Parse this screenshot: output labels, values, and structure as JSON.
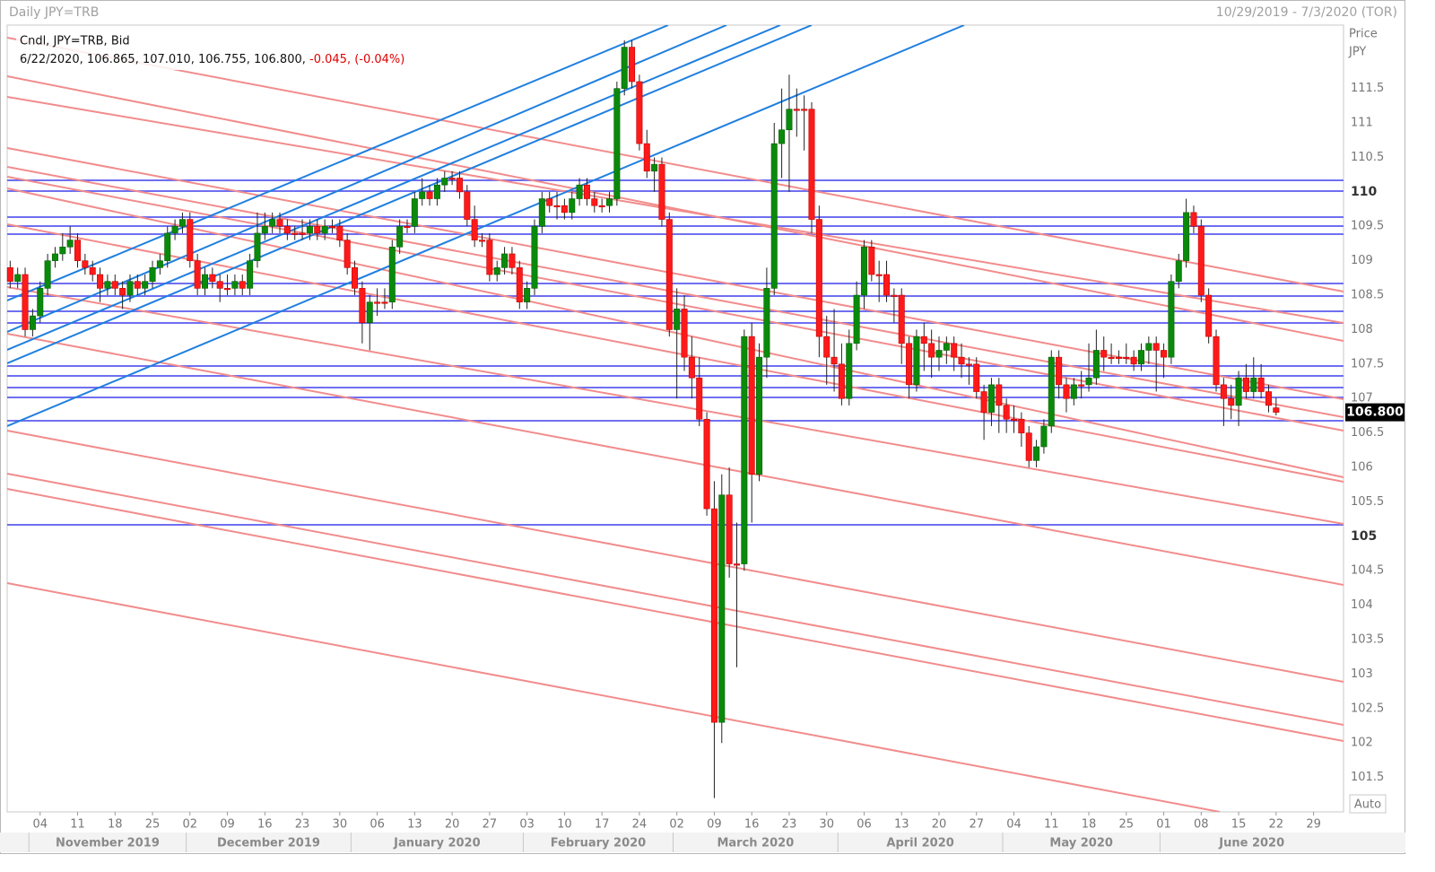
{
  "chart_data": {
    "type": "candlestick",
    "title": "Daily JPY=TRB",
    "subtitle": "10/29/2019 - 7/3/2020 (TOR)",
    "legend_title": "Cndl, JPY=TRB, Bid",
    "legend_values": "6/22/2020, 106.865, 107.010, 106.755, 106.800,",
    "legend_change": "-0.045, (-0.04%)",
    "y_label": "Price",
    "y_unit": "JPY",
    "last_price_label": "106.800",
    "auto_label": "Auto",
    "up_color": "#0a8a0a",
    "down_color": "#ff1a1a",
    "ylim": [
      101,
      112.42
    ],
    "xlim": [
      -0.4,
      178
    ],
    "yticks": [
      101.5,
      102,
      102.5,
      103,
      103.5,
      104,
      104.5,
      105,
      105.5,
      106,
      106.5,
      107,
      107.5,
      108,
      108.5,
      109,
      109.5,
      110,
      110.5,
      111,
      111.5
    ],
    "xticks": [
      {
        "value": 4,
        "label": "04"
      },
      {
        "value": 9,
        "label": "11"
      },
      {
        "value": 14,
        "label": "18"
      },
      {
        "value": 19,
        "label": "25"
      },
      {
        "value": 24,
        "label": "02"
      },
      {
        "value": 29,
        "label": "09"
      },
      {
        "value": 34,
        "label": "16"
      },
      {
        "value": 39,
        "label": "23"
      },
      {
        "value": 44,
        "label": "30"
      },
      {
        "value": 49,
        "label": "06"
      },
      {
        "value": 54,
        "label": "13"
      },
      {
        "value": 59,
        "label": "20"
      },
      {
        "value": 64,
        "label": "27"
      },
      {
        "value": 69,
        "label": "03"
      },
      {
        "value": 74,
        "label": "10"
      },
      {
        "value": 79,
        "label": "17"
      },
      {
        "value": 84,
        "label": "24"
      },
      {
        "value": 89,
        "label": "02"
      },
      {
        "value": 94,
        "label": "09"
      },
      {
        "value": 99,
        "label": "16"
      },
      {
        "value": 104,
        "label": "23"
      },
      {
        "value": 109,
        "label": "30"
      },
      {
        "value": 114,
        "label": "06"
      },
      {
        "value": 119,
        "label": "13"
      },
      {
        "value": 124,
        "label": "20"
      },
      {
        "value": 129,
        "label": "27"
      },
      {
        "value": 134,
        "label": "04"
      },
      {
        "value": 139,
        "label": "11"
      },
      {
        "value": 144,
        "label": "18"
      },
      {
        "value": 149,
        "label": "25"
      },
      {
        "value": 154,
        "label": "01"
      },
      {
        "value": 159,
        "label": "08"
      },
      {
        "value": 164,
        "label": "15"
      },
      {
        "value": 169,
        "label": "22"
      },
      {
        "value": 174,
        "label": "29"
      }
    ],
    "month_ticks": [
      {
        "value": 3,
        "label": "November 2019"
      },
      {
        "value": 24,
        "label": "December 2019"
      },
      {
        "value": 46,
        "label": "January 2020"
      },
      {
        "value": 69,
        "label": "February 2020"
      },
      {
        "value": 89,
        "label": "March 2020"
      },
      {
        "value": 111,
        "label": "April 2020"
      },
      {
        "value": 133,
        "label": "May 2020"
      },
      {
        "value": 154,
        "label": "June 2020"
      }
    ],
    "candles": [
      [
        108.9,
        109.0,
        108.6,
        108.7
      ],
      [
        108.7,
        108.9,
        108.6,
        108.8
      ],
      [
        108.8,
        108.9,
        107.9,
        108.0
      ],
      [
        108.0,
        108.3,
        107.9,
        108.2
      ],
      [
        108.2,
        108.7,
        108.1,
        108.6
      ],
      [
        108.6,
        109.1,
        108.5,
        109.0
      ],
      [
        109.0,
        109.2,
        108.9,
        109.1
      ],
      [
        109.1,
        109.4,
        109.0,
        109.2
      ],
      [
        109.2,
        109.5,
        109.1,
        109.3
      ],
      [
        109.3,
        109.4,
        108.9,
        109.0
      ],
      [
        109.0,
        109.1,
        108.8,
        108.9
      ],
      [
        108.9,
        109.0,
        108.7,
        108.8
      ],
      [
        108.8,
        108.9,
        108.4,
        108.6
      ],
      [
        108.6,
        108.8,
        108.5,
        108.7
      ],
      [
        108.7,
        108.8,
        108.5,
        108.6
      ],
      [
        108.6,
        108.7,
        108.3,
        108.5
      ],
      [
        108.5,
        108.8,
        108.4,
        108.7
      ],
      [
        108.7,
        108.8,
        108.5,
        108.6
      ],
      [
        108.6,
        108.8,
        108.5,
        108.7
      ],
      [
        108.7,
        109.0,
        108.6,
        108.9
      ],
      [
        108.9,
        109.1,
        108.8,
        109.0
      ],
      [
        109.0,
        109.5,
        108.9,
        109.4
      ],
      [
        109.4,
        109.6,
        109.3,
        109.5
      ],
      [
        109.5,
        109.7,
        109.4,
        109.6
      ],
      [
        109.6,
        109.7,
        108.9,
        109.0
      ],
      [
        109.0,
        109.1,
        108.5,
        108.6
      ],
      [
        108.6,
        108.9,
        108.5,
        108.8
      ],
      [
        108.8,
        108.9,
        108.6,
        108.7
      ],
      [
        108.7,
        108.8,
        108.4,
        108.6
      ],
      [
        108.6,
        108.8,
        108.5,
        108.6
      ],
      [
        108.6,
        108.8,
        108.5,
        108.7
      ],
      [
        108.7,
        108.8,
        108.5,
        108.6
      ],
      [
        108.6,
        109.1,
        108.5,
        109.0
      ],
      [
        109.0,
        109.7,
        108.9,
        109.4
      ],
      [
        109.4,
        109.7,
        109.3,
        109.5
      ],
      [
        109.5,
        109.7,
        109.4,
        109.6
      ],
      [
        109.6,
        109.7,
        109.4,
        109.5
      ],
      [
        109.5,
        109.6,
        109.3,
        109.4
      ],
      [
        109.4,
        109.5,
        109.3,
        109.4
      ],
      [
        109.4,
        109.6,
        109.3,
        109.4
      ],
      [
        109.4,
        109.6,
        109.3,
        109.5
      ],
      [
        109.5,
        109.6,
        109.3,
        109.4
      ],
      [
        109.4,
        109.6,
        109.3,
        109.5
      ],
      [
        109.5,
        109.6,
        109.4,
        109.5
      ],
      [
        109.5,
        109.6,
        109.2,
        109.3
      ],
      [
        109.3,
        109.4,
        108.8,
        108.9
      ],
      [
        108.9,
        109.0,
        108.5,
        108.6
      ],
      [
        108.6,
        108.7,
        107.8,
        108.1
      ],
      [
        108.1,
        108.5,
        107.7,
        108.4
      ],
      [
        108.4,
        108.6,
        108.2,
        108.4
      ],
      [
        108.4,
        108.6,
        108.3,
        108.4
      ],
      [
        108.4,
        109.3,
        108.3,
        109.2
      ],
      [
        109.2,
        109.6,
        109.1,
        109.5
      ],
      [
        109.5,
        109.6,
        109.4,
        109.5
      ],
      [
        109.5,
        110.0,
        109.4,
        109.9
      ],
      [
        109.9,
        110.2,
        109.8,
        110.0
      ],
      [
        110.0,
        110.1,
        109.8,
        109.9
      ],
      [
        109.9,
        110.2,
        109.8,
        110.1
      ],
      [
        110.1,
        110.3,
        110.0,
        110.2
      ],
      [
        110.2,
        110.3,
        110.1,
        110.2
      ],
      [
        110.2,
        110.3,
        109.9,
        110.0
      ],
      [
        110.0,
        110.1,
        109.5,
        109.6
      ],
      [
        109.6,
        109.8,
        109.2,
        109.3
      ],
      [
        109.3,
        109.4,
        109.2,
        109.3
      ],
      [
        109.3,
        109.4,
        108.7,
        108.8
      ],
      [
        108.8,
        109.0,
        108.7,
        108.9
      ],
      [
        108.9,
        109.2,
        108.8,
        109.1
      ],
      [
        109.1,
        109.2,
        108.8,
        108.9
      ],
      [
        108.9,
        109.0,
        108.3,
        108.4
      ],
      [
        108.4,
        108.7,
        108.3,
        108.6
      ],
      [
        108.6,
        109.6,
        108.5,
        109.5
      ],
      [
        109.5,
        110.0,
        109.4,
        109.9
      ],
      [
        109.9,
        110.0,
        109.7,
        109.8
      ],
      [
        109.8,
        110.0,
        109.6,
        109.8
      ],
      [
        109.8,
        109.9,
        109.6,
        109.7
      ],
      [
        109.7,
        110.0,
        109.6,
        109.9
      ],
      [
        109.9,
        110.2,
        109.8,
        110.1
      ],
      [
        110.1,
        110.2,
        109.8,
        109.9
      ],
      [
        109.9,
        110.0,
        109.7,
        109.8
      ],
      [
        109.8,
        109.9,
        109.7,
        109.8
      ],
      [
        109.8,
        110.0,
        109.7,
        109.9
      ],
      [
        109.9,
        111.6,
        109.8,
        111.5
      ],
      [
        111.5,
        112.2,
        111.4,
        112.1
      ],
      [
        112.1,
        112.2,
        111.5,
        111.6
      ],
      [
        111.6,
        111.7,
        110.6,
        110.7
      ],
      [
        110.7,
        110.9,
        110.2,
        110.3
      ],
      [
        110.3,
        110.5,
        110.0,
        110.4
      ],
      [
        110.4,
        110.5,
        109.5,
        109.6
      ],
      [
        109.6,
        109.7,
        107.9,
        108.0
      ],
      [
        108.0,
        108.6,
        107.0,
        108.3
      ],
      [
        108.3,
        108.5,
        107.4,
        107.6
      ],
      [
        107.6,
        107.9,
        107.0,
        107.3
      ],
      [
        107.3,
        107.6,
        106.6,
        106.7
      ],
      [
        106.7,
        106.8,
        105.3,
        105.4
      ],
      [
        105.4,
        105.8,
        101.2,
        102.3
      ],
      [
        102.3,
        105.9,
        102.0,
        105.6
      ],
      [
        105.6,
        106.0,
        104.4,
        104.6
      ],
      [
        104.6,
        105.2,
        103.1,
        104.6
      ],
      [
        104.6,
        108.0,
        104.5,
        107.9
      ],
      [
        107.9,
        108.1,
        105.2,
        105.9
      ],
      [
        105.9,
        107.8,
        105.8,
        107.6
      ],
      [
        107.6,
        108.9,
        107.3,
        108.6
      ],
      [
        108.6,
        111.0,
        108.5,
        110.7
      ],
      [
        110.7,
        111.5,
        110.2,
        110.9
      ],
      [
        110.9,
        111.7,
        110.0,
        111.2
      ],
      [
        111.2,
        111.5,
        110.8,
        111.2
      ],
      [
        111.2,
        111.4,
        110.6,
        111.2
      ],
      [
        111.2,
        111.3,
        109.4,
        109.6
      ],
      [
        109.6,
        109.8,
        107.6,
        107.9
      ],
      [
        107.9,
        108.2,
        107.2,
        107.6
      ],
      [
        107.6,
        108.3,
        107.1,
        107.5
      ],
      [
        107.5,
        107.8,
        106.9,
        107.0
      ],
      [
        107.0,
        108.0,
        106.9,
        107.8
      ],
      [
        107.8,
        108.7,
        107.7,
        108.5
      ],
      [
        108.5,
        109.3,
        108.3,
        109.2
      ],
      [
        109.2,
        109.3,
        108.7,
        108.8
      ],
      [
        108.8,
        109.0,
        108.4,
        108.8
      ],
      [
        108.8,
        109.0,
        108.4,
        108.5
      ],
      [
        108.5,
        108.6,
        108.1,
        108.5
      ],
      [
        108.5,
        108.6,
        107.5,
        107.8
      ],
      [
        107.8,
        107.9,
        107.0,
        107.2
      ],
      [
        107.2,
        108.0,
        107.1,
        107.9
      ],
      [
        107.9,
        108.1,
        107.4,
        107.8
      ],
      [
        107.8,
        108.0,
        107.3,
        107.6
      ],
      [
        107.6,
        107.9,
        107.4,
        107.7
      ],
      [
        107.7,
        107.9,
        107.5,
        107.8
      ],
      [
        107.8,
        107.9,
        107.4,
        107.6
      ],
      [
        107.6,
        107.8,
        107.3,
        107.5
      ],
      [
        107.5,
        107.6,
        107.2,
        107.5
      ],
      [
        107.5,
        107.6,
        107.0,
        107.1
      ],
      [
        107.1,
        107.2,
        106.4,
        106.8
      ],
      [
        106.8,
        107.3,
        106.6,
        107.2
      ],
      [
        107.2,
        107.3,
        106.5,
        106.9
      ],
      [
        106.9,
        107.0,
        106.5,
        106.7
      ],
      [
        106.7,
        106.9,
        106.5,
        106.7
      ],
      [
        106.7,
        106.8,
        106.3,
        106.5
      ],
      [
        106.5,
        106.6,
        106.0,
        106.1
      ],
      [
        106.1,
        106.4,
        106.0,
        106.3
      ],
      [
        106.3,
        106.7,
        106.2,
        106.6
      ],
      [
        106.6,
        107.7,
        106.5,
        107.6
      ],
      [
        107.6,
        107.7,
        107.0,
        107.2
      ],
      [
        107.2,
        107.3,
        106.8,
        107.0
      ],
      [
        107.0,
        107.3,
        106.9,
        107.2
      ],
      [
        107.2,
        107.4,
        107.0,
        107.2
      ],
      [
        107.2,
        107.8,
        107.1,
        107.3
      ],
      [
        107.3,
        108.0,
        107.2,
        107.7
      ],
      [
        107.7,
        107.9,
        107.4,
        107.6
      ],
      [
        107.6,
        107.8,
        107.5,
        107.6
      ],
      [
        107.6,
        107.7,
        107.5,
        107.6
      ],
      [
        107.6,
        107.8,
        107.5,
        107.6
      ],
      [
        107.6,
        107.7,
        107.4,
        107.5
      ],
      [
        107.5,
        107.8,
        107.4,
        107.7
      ],
      [
        107.7,
        107.9,
        107.5,
        107.8
      ],
      [
        107.8,
        107.9,
        107.1,
        107.7
      ],
      [
        107.7,
        107.8,
        107.3,
        107.6
      ],
      [
        107.6,
        108.8,
        107.5,
        108.7
      ],
      [
        108.7,
        109.1,
        108.6,
        109.0
      ],
      [
        109.0,
        109.9,
        108.9,
        109.7
      ],
      [
        109.7,
        109.8,
        109.4,
        109.5
      ],
      [
        109.5,
        109.6,
        108.4,
        108.5
      ],
      [
        108.5,
        108.6,
        107.8,
        107.9
      ],
      [
        107.9,
        108.0,
        107.1,
        107.2
      ],
      [
        107.2,
        107.3,
        106.6,
        107.0
      ],
      [
        107.0,
        107.2,
        106.7,
        106.9
      ],
      [
        106.9,
        107.4,
        106.6,
        107.3
      ],
      [
        107.3,
        107.5,
        107.0,
        107.1
      ],
      [
        107.1,
        107.6,
        107.0,
        107.3
      ],
      [
        107.3,
        107.5,
        107.0,
        107.1
      ],
      [
        107.1,
        107.2,
        106.8,
        106.9
      ],
      [
        106.865,
        107.01,
        106.755,
        106.8
      ]
    ]
  }
}
